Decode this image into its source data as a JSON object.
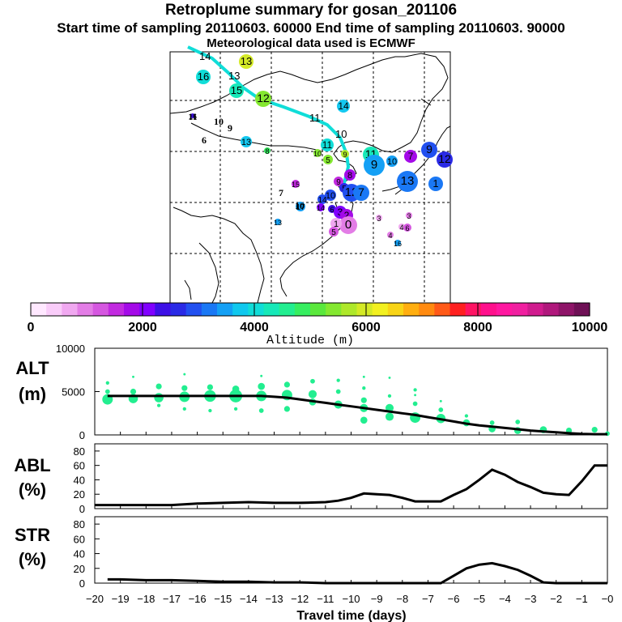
{
  "header": {
    "title": "Retroplume summary for gosan_201106",
    "subtitle": "Start time of sampling 20110603. 60000     End time of sampling 20110603. 90000",
    "met": "Meteorological data used is ECMWF"
  },
  "colorbar": {
    "label": "Altitude (m)",
    "ticks": [
      "0",
      "2000",
      "4000",
      "6000",
      "8000",
      "10000"
    ],
    "colors": [
      "#ffe8ff",
      "#f9ccf9",
      "#f0a8f0",
      "#e37de6",
      "#d557e0",
      "#c22ae0",
      "#a40ae8",
      "#8000ff",
      "#3d10e6",
      "#2a2ae6",
      "#2250f0",
      "#1a78f5",
      "#14a0f5",
      "#10c8ee",
      "#10ddd8",
      "#16e8b8",
      "#22ee90",
      "#36ee60",
      "#5ae83c",
      "#84e830",
      "#aee82a",
      "#d4ea26",
      "#f2f020",
      "#f8d416",
      "#ffae10",
      "#ff8a10",
      "#ff5a18",
      "#ff2020",
      "#ff1464",
      "#ff108c",
      "#ff18a0",
      "#f020a0",
      "#d01c8e",
      "#b0187c",
      "#8e1468",
      "#6e1055"
    ]
  },
  "map": {
    "trajectory_labels": [
      "14",
      "13",
      "12",
      "11",
      "10"
    ],
    "markers": [
      {
        "label": "16",
        "color": "#10ddd8"
      },
      {
        "label": "13",
        "color": "#d4ea26"
      },
      {
        "label": "15",
        "color": "#16e8b8"
      },
      {
        "label": "12",
        "color": "#84e830"
      },
      {
        "label": "14",
        "color": "#14c8f0"
      },
      {
        "label": "11",
        "color": "#10ddd8"
      },
      {
        "label": "10",
        "color": "#84e830"
      },
      {
        "label": "9",
        "color": "#aee82a"
      },
      {
        "label": "13",
        "color": "#14c8f0"
      },
      {
        "label": "8",
        "color": "#36ee60"
      },
      {
        "label": "11",
        "color": "#16e8b8"
      },
      {
        "label": "5",
        "color": "#84e830"
      },
      {
        "label": "9",
        "color": "#14a0f5"
      },
      {
        "label": "10",
        "color": "#14a0f5"
      },
      {
        "label": "7",
        "color": "#a40ae8"
      },
      {
        "label": "9",
        "color": "#2250f0"
      },
      {
        "label": "12",
        "color": "#2a2ae6"
      },
      {
        "label": "13",
        "color": "#1a78f5"
      },
      {
        "label": "1",
        "color": "#1a78f5"
      },
      {
        "label": "8",
        "color": "#a40ae8"
      },
      {
        "label": "9",
        "color": "#c22ae0"
      },
      {
        "label": "5",
        "color": "#2a2ae6"
      },
      {
        "label": "12",
        "color": "#2250f0"
      },
      {
        "label": "7",
        "color": "#1a78f5"
      },
      {
        "label": "10",
        "color": "#2250f0"
      },
      {
        "label": "14",
        "color": "#2250f0"
      },
      {
        "label": "6",
        "color": "#3d10e6"
      },
      {
        "label": "3",
        "color": "#8000ff"
      },
      {
        "label": "2",
        "color": "#a40ae8"
      },
      {
        "label": "0",
        "color": "#e37de6"
      },
      {
        "label": "1",
        "color": "#f0a8f0"
      },
      {
        "label": "5",
        "color": "#d557e0"
      },
      {
        "label": "3",
        "color": "#f0a8f0"
      },
      {
        "label": "3",
        "color": "#e37de6"
      },
      {
        "label": "4",
        "color": "#f0a8f0"
      },
      {
        "label": "6",
        "color": "#d557e0"
      },
      {
        "label": "4",
        "color": "#e37de6"
      },
      {
        "label": "16",
        "color": "#14a0f5"
      },
      {
        "label": "15",
        "color": "#c22ae0"
      },
      {
        "label": "13",
        "color": "#14a0f5"
      },
      {
        "label": "16",
        "color": "#3d10e6"
      },
      {
        "label": "17",
        "color": "#14a0f5"
      },
      {
        "label": "14",
        "color": "#8000ff"
      }
    ],
    "text_labels": [
      "11",
      "10",
      "9",
      "6",
      "7",
      "10"
    ]
  },
  "chart_data": [
    {
      "type": "line",
      "title": "ALT (m)",
      "ylabel": "ALT (m)",
      "ylim": [
        0,
        10000
      ],
      "yticks": [
        "10000",
        "5000",
        "0"
      ],
      "x": [
        -19.5,
        -19,
        -18.5,
        -18,
        -17.5,
        -17,
        -16.5,
        -16,
        -15.5,
        -15,
        -14.5,
        -14,
        -13.5,
        -13,
        -12.5,
        -12,
        -11.5,
        -11,
        -10.5,
        -10,
        -9.5,
        -9,
        -8.5,
        -8,
        -7.5,
        -7,
        -6.5,
        -6,
        -5.5,
        -5,
        -4.5,
        -4,
        -3.5,
        -3,
        -2.5,
        -2,
        -1.5,
        -1,
        -0.5,
        0
      ],
      "series": [
        {
          "name": "median",
          "values": [
            4500,
            4500,
            4500,
            4500,
            4500,
            4500,
            4500,
            4500,
            4500,
            4500,
            4500,
            4500,
            4500,
            4400,
            4300,
            4100,
            3900,
            3700,
            3500,
            3300,
            3100,
            2900,
            2700,
            2500,
            2300,
            2050,
            1800,
            1550,
            1300,
            1100,
            950,
            800,
            650,
            500,
            400,
            300,
            200,
            120,
            80,
            80
          ]
        }
      ],
      "scatter": [
        {
          "x": -19.5,
          "y": 4100,
          "s": 9
        },
        {
          "x": -19.5,
          "y": 5000,
          "s": 4
        },
        {
          "x": -19.5,
          "y": 6000,
          "s": 3
        },
        {
          "x": -18.5,
          "y": 4200,
          "s": 8
        },
        {
          "x": -18.5,
          "y": 5000,
          "s": 5
        },
        {
          "x": -18.5,
          "y": 6700,
          "s": 2
        },
        {
          "x": -17.5,
          "y": 4300,
          "s": 8
        },
        {
          "x": -17.5,
          "y": 5600,
          "s": 5
        },
        {
          "x": -17.5,
          "y": 3400,
          "s": 3
        },
        {
          "x": -16.5,
          "y": 4400,
          "s": 9
        },
        {
          "x": -16.5,
          "y": 5400,
          "s": 5
        },
        {
          "x": -16.5,
          "y": 3000,
          "s": 3
        },
        {
          "x": -16.5,
          "y": 7000,
          "s": 2
        },
        {
          "x": -15.5,
          "y": 4500,
          "s": 10
        },
        {
          "x": -15.5,
          "y": 5500,
          "s": 5
        },
        {
          "x": -15.5,
          "y": 2800,
          "s": 3
        },
        {
          "x": -14.5,
          "y": 4500,
          "s": 11
        },
        {
          "x": -14.5,
          "y": 5300,
          "s": 6
        },
        {
          "x": -14.5,
          "y": 3000,
          "s": 3
        },
        {
          "x": -13.5,
          "y": 4500,
          "s": 9
        },
        {
          "x": -13.5,
          "y": 5600,
          "s": 6
        },
        {
          "x": -13.5,
          "y": 2800,
          "s": 4
        },
        {
          "x": -13.5,
          "y": 6800,
          "s": 2
        },
        {
          "x": -12.5,
          "y": 4600,
          "s": 9
        },
        {
          "x": -12.5,
          "y": 5800,
          "s": 5
        },
        {
          "x": -12.5,
          "y": 3000,
          "s": 5
        },
        {
          "x": -11.5,
          "y": 4700,
          "s": 7
        },
        {
          "x": -11.5,
          "y": 6200,
          "s": 4
        },
        {
          "x": -11.5,
          "y": 3800,
          "s": 6
        },
        {
          "x": -10.5,
          "y": 3500,
          "s": 7
        },
        {
          "x": -10.5,
          "y": 5000,
          "s": 4
        },
        {
          "x": -10.5,
          "y": 6300,
          "s": 3
        },
        {
          "x": -9.5,
          "y": 3100,
          "s": 7
        },
        {
          "x": -9.5,
          "y": 4000,
          "s": 5
        },
        {
          "x": -9.5,
          "y": 1700,
          "s": 6
        },
        {
          "x": -9.5,
          "y": 6700,
          "s": 2
        },
        {
          "x": -9.5,
          "y": 5400,
          "s": 3
        },
        {
          "x": -8.5,
          "y": 3100,
          "s": 7
        },
        {
          "x": -8.5,
          "y": 2100,
          "s": 7
        },
        {
          "x": -8.5,
          "y": 4500,
          "s": 3
        },
        {
          "x": -8.5,
          "y": 6600,
          "s": 2
        },
        {
          "x": -7.5,
          "y": 2000,
          "s": 9
        },
        {
          "x": -7.5,
          "y": 3600,
          "s": 4
        },
        {
          "x": -7.5,
          "y": 5200,
          "s": 3
        },
        {
          "x": -7.5,
          "y": 4600,
          "s": 2
        },
        {
          "x": -6.5,
          "y": 1900,
          "s": 8
        },
        {
          "x": -6.5,
          "y": 2900,
          "s": 4
        },
        {
          "x": -6.5,
          "y": 3900,
          "s": 2
        },
        {
          "x": -5.5,
          "y": 1400,
          "s": 6
        },
        {
          "x": -5.5,
          "y": 2200,
          "s": 3
        },
        {
          "x": -4.5,
          "y": 700,
          "s": 6
        },
        {
          "x": -4.5,
          "y": 1400,
          "s": 4
        },
        {
          "x": -3.5,
          "y": 500,
          "s": 6
        },
        {
          "x": -3.5,
          "y": 1500,
          "s": 4
        },
        {
          "x": -2.5,
          "y": 600,
          "s": 6
        },
        {
          "x": -1.5,
          "y": 500,
          "s": 5
        },
        {
          "x": -0.5,
          "y": 600,
          "s": 5
        },
        {
          "x": 0,
          "y": 150,
          "s": 4
        }
      ]
    },
    {
      "type": "line",
      "title": "ABL (%)",
      "ylabel": "ABL (%)",
      "ylim": [
        0,
        90
      ],
      "yticks": [
        "80",
        "60",
        "40",
        "20",
        "0"
      ],
      "x": [
        -20,
        -19,
        -18,
        -17,
        -16,
        -15,
        -14,
        -13,
        -12,
        -11,
        -10.5,
        -10,
        -9.5,
        -9,
        -8.5,
        -8,
        -7.5,
        -7,
        -6.5,
        -6,
        -5.5,
        -5,
        -4.5,
        -4,
        -3.5,
        -3,
        -2.5,
        -2,
        -1.5,
        -1,
        -0.5,
        0
      ],
      "series": [
        {
          "name": "ABL",
          "values": [
            5,
            5,
            5,
            5,
            7,
            8,
            9,
            8,
            8,
            9,
            11,
            15,
            21,
            20,
            19,
            15,
            10,
            10,
            10,
            19,
            27,
            40,
            54,
            47,
            37,
            30,
            22,
            20,
            19,
            38,
            60,
            60
          ]
        }
      ]
    },
    {
      "type": "line",
      "title": "STR (%)",
      "ylabel": "STR (%)",
      "ylim": [
        0,
        90
      ],
      "yticks": [
        "80",
        "60",
        "40",
        "20",
        "0"
      ],
      "xlabel": "Travel time (days)",
      "xticks": [
        "−20",
        "−19",
        "−18",
        "−17",
        "−16",
        "−15",
        "−14",
        "−13",
        "−12",
        "−11",
        "−10",
        "−9",
        "−8",
        "−7",
        "−6",
        "−5",
        "−4",
        "−3",
        "−2",
        "−1",
        "−0"
      ],
      "x": [
        -19.5,
        -19,
        -18,
        -17,
        -16,
        -15,
        -14,
        -13,
        -12,
        -11,
        -10,
        -9,
        -8,
        -7,
        -6.5,
        -6,
        -5.5,
        -5,
        -4.5,
        -4,
        -3.5,
        -3,
        -2.5,
        -2,
        -1,
        0
      ],
      "series": [
        {
          "name": "STR",
          "values": [
            5,
            5,
            4,
            4,
            3,
            2,
            2,
            1,
            1,
            0,
            0,
            0,
            0,
            0,
            0,
            10,
            20,
            25,
            27,
            23,
            18,
            10,
            1,
            0,
            0,
            0
          ]
        }
      ]
    }
  ]
}
